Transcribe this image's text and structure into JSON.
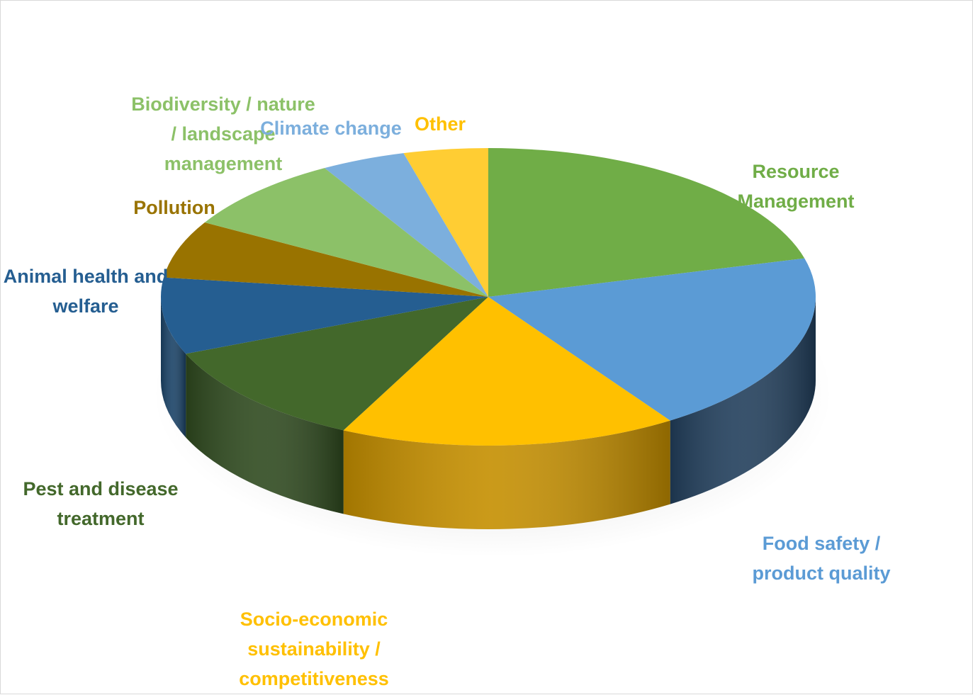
{
  "chart_data": {
    "type": "pie",
    "style": "3d-exploded-none",
    "title": "",
    "legend": "none",
    "categories": [
      "Resource Management",
      "Food safety / product quality",
      "Socio-economic sustainability / competitiveness",
      "Pest and disease treatment",
      "Animal health and welfare",
      "Pollution",
      "Biodiversity / nature / landscape management",
      "Climate change",
      "Other"
    ],
    "values": [
      20,
      19,
      16,
      11,
      8,
      6,
      8,
      4,
      4
    ],
    "unit": "percent (estimated)",
    "colors": [
      "#70ad47",
      "#5b9bd5",
      "#ffc000",
      "#43682b",
      "#255e91",
      "#997300",
      "#8cc168",
      "#7cafdd",
      "#ffcd33"
    ],
    "side_colors": [
      "#4e7a31",
      "#223f5c",
      "#c58f00",
      "#2f4a1f",
      "#1a4266",
      "#6b5100",
      "#5f8a45",
      "#4f7ea8",
      "#c89a10"
    ],
    "labels": [
      {
        "lines": [
          "Resource",
          "Management"
        ],
        "color": "#70ad47"
      },
      {
        "lines": [
          "Food safety /",
          "product quality"
        ],
        "color": "#5b9bd5"
      },
      {
        "lines": [
          "Socio-economic",
          "sustainability /",
          "competitiveness"
        ],
        "color": "#ffc000"
      },
      {
        "lines": [
          "Pest and disease",
          "treatment"
        ],
        "color": "#43682b"
      },
      {
        "lines": [
          "Animal health and",
          "welfare"
        ],
        "color": "#255e91"
      },
      {
        "lines": [
          "Pollution"
        ],
        "color": "#997300"
      },
      {
        "lines": [
          "Biodiversity / nature",
          "/ landscape",
          "management"
        ],
        "color": "#8cc168"
      },
      {
        "lines": [
          "Climate change"
        ],
        "color": "#7cafdd"
      },
      {
        "lines": [
          "Other"
        ],
        "color": "#ffc000"
      }
    ]
  }
}
